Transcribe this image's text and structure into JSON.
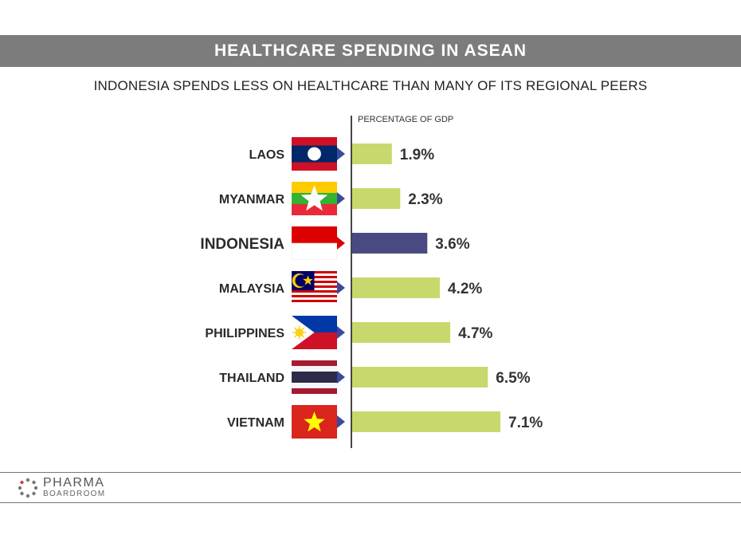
{
  "header": {
    "title": "HEALTHCARE SPENDING IN ASEAN",
    "subtitle": "INDONESIA SPENDS LESS ON HEALTHCARE THAN MANY OF ITS REGIONAL PEERS"
  },
  "chart_data": {
    "type": "bar",
    "orientation": "horizontal",
    "axis_caption": "PERCENTAGE OF GDP",
    "categories": [
      "LAOS",
      "MYANMAR",
      "INDONESIA",
      "MALAYSIA",
      "PHILIPPINES",
      "THAILAND",
      "VIETNAM"
    ],
    "values": [
      1.9,
      2.3,
      3.6,
      4.2,
      4.7,
      6.5,
      7.1
    ],
    "value_labels": [
      "1.9%",
      "2.3%",
      "3.6%",
      "4.2%",
      "4.7%",
      "6.5%",
      "7.1%"
    ],
    "highlight": "INDONESIA",
    "xlim": [
      0,
      7.1
    ],
    "grid": false,
    "legend": "none",
    "colors": {
      "default_bar": "#c9d86c",
      "highlight_bar": "#4a4a82",
      "axis": "#444444"
    },
    "flags": [
      "laos-flag-icon",
      "myanmar-flag-icon",
      "indonesia-flag-icon",
      "malaysia-flag-icon",
      "philippines-flag-icon",
      "thailand-flag-icon",
      "vietnam-flag-icon"
    ]
  },
  "footer": {
    "logo_main": "PHARMA",
    "logo_sub": "BOARDROOM"
  }
}
